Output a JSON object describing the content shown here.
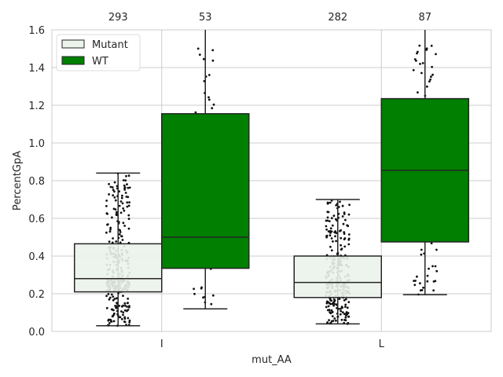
{
  "chart_data": {
    "type": "box",
    "xlabel": "mut_AA",
    "ylabel": "PercentGpA",
    "ylim": [
      0,
      1.6
    ],
    "yticks": [
      "0.0",
      "0.2",
      "0.4",
      "0.6",
      "0.8",
      "1.0",
      "1.2",
      "1.4",
      "1.6"
    ],
    "categories": [
      "I",
      "L"
    ],
    "grid": true,
    "legend_position": "top-left",
    "series": [
      {
        "name": "Mutant",
        "color": "#ebf3eb",
        "boxes": [
          {
            "category": "I",
            "whisker_low": 0.03,
            "q1": 0.21,
            "median": 0.28,
            "q3": 0.465,
            "whisker_high": 0.84,
            "count": "293"
          },
          {
            "category": "L",
            "whisker_low": 0.04,
            "q1": 0.18,
            "median": 0.26,
            "q3": 0.4,
            "whisker_high": 0.7,
            "count": "282"
          }
        ]
      },
      {
        "name": "WT",
        "color": "#007f00",
        "boxes": [
          {
            "category": "I",
            "whisker_low": 0.12,
            "q1": 0.335,
            "median": 0.5,
            "q3": 1.155,
            "whisker_high": 1.6,
            "count": "53"
          },
          {
            "category": "L",
            "whisker_low": 0.195,
            "q1": 0.475,
            "median": 0.855,
            "q3": 1.235,
            "whisker_high": 1.6,
            "count": "87"
          }
        ]
      }
    ]
  }
}
